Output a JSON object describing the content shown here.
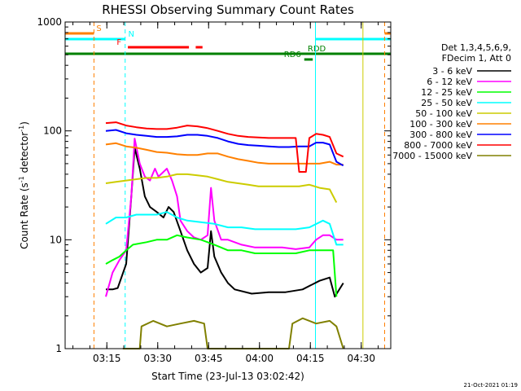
{
  "chart_data": {
    "type": "line",
    "title": "RHESSI Observing Summary Count Rates",
    "xlabel": "Start Time (23-Jul-13 03:02:42)",
    "ylabel_parts": [
      "Count Rate (s",
      "-1",
      " detector",
      "-1",
      ")"
    ],
    "y_scale": "log",
    "ylim": [
      1,
      1000
    ],
    "y_tick_labels": [
      {
        "value": 1,
        "label": "1"
      },
      {
        "value": 10,
        "label": "10"
      },
      {
        "value": 100,
        "label": "100"
      },
      {
        "value": 1000,
        "label": "1000"
      }
    ],
    "xlim_minutes": [
      0,
      96
    ],
    "x_tick_labels": [
      {
        "minutes": 12.3,
        "label": "03:15"
      },
      {
        "minutes": 27.3,
        "label": "03:30"
      },
      {
        "minutes": 42.3,
        "label": "03:45"
      },
      {
        "minutes": 57.3,
        "label": "04:00"
      },
      {
        "minutes": 72.3,
        "label": "04:15"
      },
      {
        "minutes": 87.3,
        "label": "04:30"
      }
    ],
    "legend_header": [
      "Det 1,3,4,5,6,9,",
      "FDecim 1, Att 0"
    ],
    "series": [
      {
        "name": "3 - 6 keV",
        "color": "#000000",
        "points": [
          [
            12,
            3.5
          ],
          [
            14,
            3.5
          ],
          [
            15.5,
            3.6
          ],
          [
            18,
            6
          ],
          [
            19.5,
            25
          ],
          [
            20.5,
            70
          ],
          [
            22,
            45
          ],
          [
            23.5,
            25
          ],
          [
            25,
            20
          ],
          [
            27,
            18
          ],
          [
            29,
            16
          ],
          [
            30.5,
            20
          ],
          [
            32,
            18
          ],
          [
            34,
            12
          ],
          [
            36,
            8
          ],
          [
            38,
            6
          ],
          [
            40,
            5
          ],
          [
            42,
            5.5
          ],
          [
            43,
            12
          ],
          [
            44,
            7
          ],
          [
            46,
            5
          ],
          [
            48,
            4
          ],
          [
            50,
            3.5
          ],
          [
            55,
            3.2
          ],
          [
            60,
            3.3
          ],
          [
            65,
            3.3
          ],
          [
            70,
            3.5
          ],
          [
            75,
            4.2
          ],
          [
            78,
            4.5
          ],
          [
            79.5,
            3
          ],
          [
            82,
            4
          ]
        ]
      },
      {
        "name": "6 - 12 keV",
        "color": "#ff00ff",
        "points": [
          [
            12,
            3
          ],
          [
            14,
            5
          ],
          [
            16,
            6.5
          ],
          [
            18,
            8
          ],
          [
            19.5,
            25
          ],
          [
            20.5,
            85
          ],
          [
            22,
            50
          ],
          [
            23.5,
            38
          ],
          [
            25,
            35
          ],
          [
            26.5,
            45
          ],
          [
            27.5,
            38
          ],
          [
            29,
            42
          ],
          [
            30,
            45
          ],
          [
            31.5,
            35
          ],
          [
            33,
            25
          ],
          [
            34,
            15
          ],
          [
            36,
            12
          ],
          [
            38,
            10.5
          ],
          [
            40,
            10
          ],
          [
            42,
            11
          ],
          [
            43,
            30
          ],
          [
            44,
            15
          ],
          [
            46,
            10
          ],
          [
            48,
            10
          ],
          [
            52,
            9
          ],
          [
            56,
            8.5
          ],
          [
            60,
            8.5
          ],
          [
            64,
            8.5
          ],
          [
            68,
            8.2
          ],
          [
            72,
            8.5
          ],
          [
            74,
            10
          ],
          [
            76,
            11
          ],
          [
            78,
            11
          ],
          [
            80,
            10
          ],
          [
            82,
            10
          ]
        ]
      },
      {
        "name": "12 - 25 keV",
        "color": "#00ff00",
        "points": [
          [
            12,
            6
          ],
          [
            14,
            6.5
          ],
          [
            16,
            7
          ],
          [
            18,
            8
          ],
          [
            20,
            9
          ],
          [
            24,
            9.5
          ],
          [
            27,
            10
          ],
          [
            30,
            10
          ],
          [
            33,
            11
          ],
          [
            36,
            10.5
          ],
          [
            40,
            10
          ],
          [
            44,
            9
          ],
          [
            48,
            8
          ],
          [
            52,
            8
          ],
          [
            56,
            7.5
          ],
          [
            60,
            7.5
          ],
          [
            64,
            7.5
          ],
          [
            68,
            7.5
          ],
          [
            72,
            8
          ],
          [
            76,
            8
          ],
          [
            79,
            8
          ],
          [
            80,
            3
          ]
        ]
      },
      {
        "name": "25 - 50 keV",
        "color": "#00ffff",
        "points": [
          [
            12,
            14
          ],
          [
            15,
            16
          ],
          [
            18,
            16
          ],
          [
            21,
            17
          ],
          [
            24,
            17
          ],
          [
            27,
            17
          ],
          [
            30,
            18
          ],
          [
            33,
            16
          ],
          [
            36,
            15
          ],
          [
            40,
            14.5
          ],
          [
            44,
            14
          ],
          [
            48,
            13
          ],
          [
            52,
            13
          ],
          [
            56,
            12.5
          ],
          [
            60,
            12.5
          ],
          [
            64,
            12.5
          ],
          [
            68,
            12.5
          ],
          [
            72,
            13
          ],
          [
            76,
            15
          ],
          [
            78,
            14
          ],
          [
            80,
            9
          ],
          [
            82,
            9
          ]
        ]
      },
      {
        "name": "50 - 100 keV",
        "color": "#cccc00",
        "points": [
          [
            12,
            33
          ],
          [
            15,
            34
          ],
          [
            18,
            35
          ],
          [
            21,
            36
          ],
          [
            24,
            37
          ],
          [
            27,
            37
          ],
          [
            30,
            38
          ],
          [
            33,
            40
          ],
          [
            36,
            40
          ],
          [
            39,
            39
          ],
          [
            42,
            38
          ],
          [
            45,
            36
          ],
          [
            48,
            34
          ],
          [
            51,
            33
          ],
          [
            54,
            32
          ],
          [
            57,
            31
          ],
          [
            60,
            31
          ],
          [
            63,
            31
          ],
          [
            66,
            31
          ],
          [
            69,
            31
          ],
          [
            72,
            32
          ],
          [
            75,
            30
          ],
          [
            78,
            29
          ],
          [
            80,
            22
          ]
        ]
      },
      {
        "name": "100 - 300 keV",
        "color": "#ff8000",
        "points": [
          [
            12,
            75
          ],
          [
            15,
            77
          ],
          [
            18,
            72
          ],
          [
            21,
            70
          ],
          [
            24,
            67
          ],
          [
            27,
            64
          ],
          [
            30,
            63
          ],
          [
            33,
            61
          ],
          [
            36,
            60
          ],
          [
            39,
            60
          ],
          [
            42,
            62
          ],
          [
            45,
            62
          ],
          [
            48,
            58
          ],
          [
            51,
            55
          ],
          [
            54,
            53
          ],
          [
            57,
            51
          ],
          [
            60,
            50
          ],
          [
            63,
            50
          ],
          [
            66,
            50
          ],
          [
            69,
            50
          ],
          [
            72,
            50
          ],
          [
            75,
            50
          ],
          [
            78,
            52
          ],
          [
            80,
            49
          ],
          [
            82,
            49
          ]
        ]
      },
      {
        "name": "300 - 800 keV",
        "color": "#0000ff",
        "points": [
          [
            12,
            100
          ],
          [
            15,
            102
          ],
          [
            18,
            95
          ],
          [
            21,
            92
          ],
          [
            24,
            90
          ],
          [
            27,
            88
          ],
          [
            30,
            88
          ],
          [
            33,
            89
          ],
          [
            36,
            92
          ],
          [
            39,
            92
          ],
          [
            42,
            90
          ],
          [
            45,
            86
          ],
          [
            48,
            80
          ],
          [
            51,
            76
          ],
          [
            54,
            74
          ],
          [
            57,
            73
          ],
          [
            60,
            72
          ],
          [
            63,
            71
          ],
          [
            66,
            71
          ],
          [
            69,
            72
          ],
          [
            72,
            72
          ],
          [
            74,
            78
          ],
          [
            76,
            78
          ],
          [
            78,
            75
          ],
          [
            80,
            52
          ],
          [
            82,
            48
          ]
        ]
      },
      {
        "name": "800 - 7000 keV",
        "color": "#ff0000",
        "points": [
          [
            12,
            118
          ],
          [
            15,
            120
          ],
          [
            18,
            112
          ],
          [
            21,
            108
          ],
          [
            24,
            105
          ],
          [
            27,
            104
          ],
          [
            30,
            104
          ],
          [
            33,
            107
          ],
          [
            36,
            112
          ],
          [
            39,
            110
          ],
          [
            42,
            106
          ],
          [
            45,
            100
          ],
          [
            48,
            94
          ],
          [
            51,
            90
          ],
          [
            54,
            88
          ],
          [
            57,
            87
          ],
          [
            60,
            86
          ],
          [
            63,
            86
          ],
          [
            66,
            86
          ],
          [
            68,
            86
          ],
          [
            69,
            42
          ],
          [
            71,
            42
          ],
          [
            72,
            86
          ],
          [
            74,
            94
          ],
          [
            76,
            92
          ],
          [
            78,
            88
          ],
          [
            80,
            62
          ],
          [
            82,
            58
          ]
        ]
      },
      {
        "name": "7000 - 15000 keV",
        "color": "#808000",
        "points": [
          [
            17,
            1
          ],
          [
            22,
            1
          ],
          [
            22.5,
            1.6
          ],
          [
            26,
            1.8
          ],
          [
            30,
            1.6
          ],
          [
            34,
            1.7
          ],
          [
            38,
            1.8
          ],
          [
            41,
            1.7
          ],
          [
            42,
            1
          ],
          [
            66,
            1
          ],
          [
            67,
            1.7
          ],
          [
            70,
            1.9
          ],
          [
            74,
            1.7
          ],
          [
            78,
            1.8
          ],
          [
            80,
            1.6
          ],
          [
            82,
            1
          ]
        ]
      }
    ],
    "markers": [
      {
        "label": "S",
        "color": "#ff8000",
        "line_start": 0,
        "line_end": 8.5,
        "label_at": 9.2
      },
      {
        "label": "S",
        "color": "#ff8000",
        "line_start": 94.2,
        "line_end": 96
      },
      {
        "label": "N",
        "color": "#00ffff",
        "line_start": 0,
        "line_end": 17.7,
        "label_at": 18.6
      },
      {
        "label": "N",
        "color": "#00ffff",
        "line_start": 73.8,
        "line_end": 96
      },
      {
        "label": "F",
        "color": "#ff0000",
        "line_start": 18.5,
        "line_end": 36.5,
        "label_at": 15.2
      },
      {
        "label": "F",
        "color": "#ff0000",
        "line_start": 38.5,
        "line_end": 40.5
      },
      {
        "label": "RDD",
        "color": "#008000",
        "line_start": 0,
        "line_end": 96,
        "label_at": 71.5
      },
      {
        "label": "RD6",
        "color": "#008000",
        "line_start": 70.5,
        "line_end": 73,
        "label_at": 64.5
      }
    ],
    "vertical_lines": [
      {
        "minutes": 8.5,
        "color": "#ff8000",
        "style": "dashed"
      },
      {
        "minutes": 17.7,
        "color": "#00ffff",
        "style": "dashed"
      },
      {
        "minutes": 73.8,
        "color": "#00ffff",
        "style": "solid"
      },
      {
        "minutes": 87.8,
        "color": "#cccc00",
        "style": "solid"
      },
      {
        "minutes": 94.2,
        "color": "#ff8000",
        "style": "dashed"
      }
    ],
    "footer_timestamp": "21-Oct-2021 01:19"
  }
}
